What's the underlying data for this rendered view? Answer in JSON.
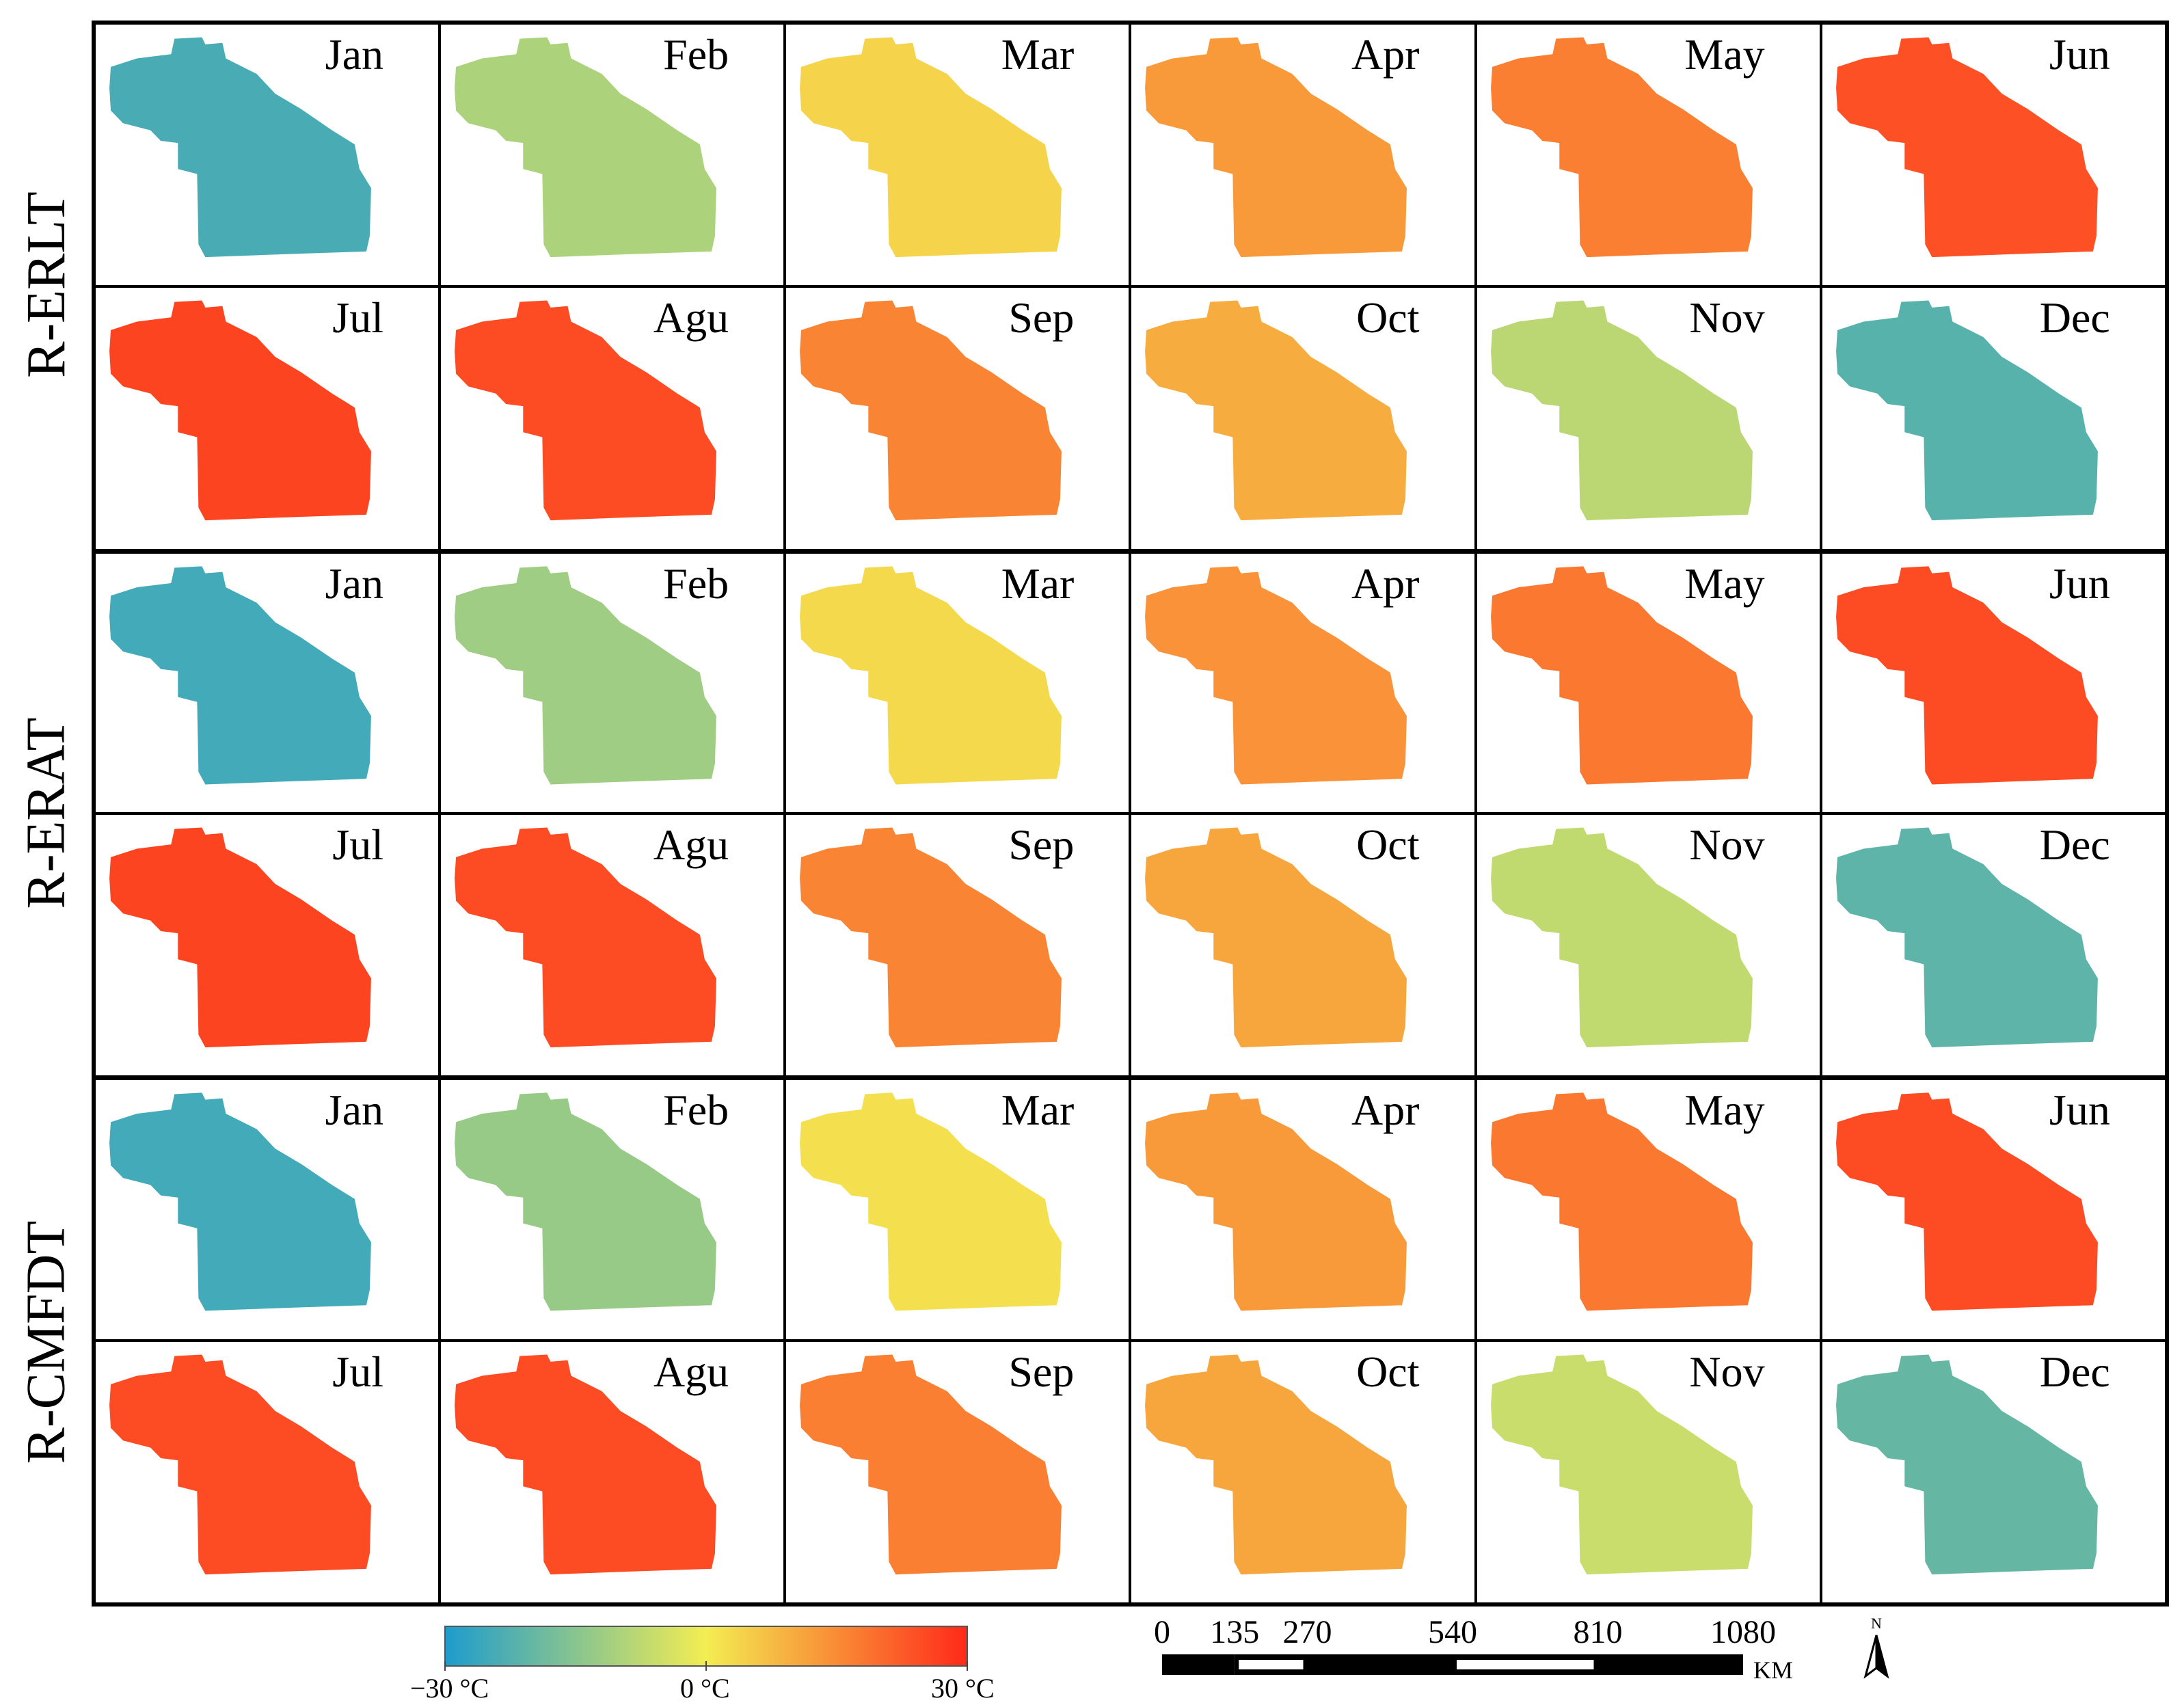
{
  "rows": [
    {
      "group": "R-ERLT",
      "months": [
        "Jan",
        "Feb",
        "Mar",
        "Apr",
        "May",
        "Jun"
      ],
      "temps": [
        -24,
        -10,
        4,
        13,
        17,
        24
      ]
    },
    {
      "group": "R-ERLT",
      "months": [
        "Jul",
        "Agu",
        "Sep",
        "Oct",
        "Nov",
        "Dec"
      ],
      "temps": [
        26,
        25,
        16,
        10,
        -8,
        -22
      ]
    },
    {
      "group": "R-ERAT",
      "months": [
        "Jan",
        "Feb",
        "Mar",
        "Apr",
        "May",
        "Jun"
      ],
      "temps": [
        -25,
        -12,
        3,
        14,
        18,
        25
      ]
    },
    {
      "group": "R-ERAT",
      "months": [
        "Jul",
        "Agu",
        "Sep",
        "Oct",
        "Nov",
        "Dec"
      ],
      "temps": [
        26,
        25,
        16,
        11,
        -7,
        -21
      ]
    },
    {
      "group": "R-CMFDT",
      "months": [
        "Jan",
        "Feb",
        "Mar",
        "Apr",
        "May",
        "Jun"
      ],
      "temps": [
        -25,
        -13,
        2,
        13,
        18,
        25
      ]
    },
    {
      "group": "R-CMFDT",
      "months": [
        "Jul",
        "Agu",
        "Sep",
        "Oct",
        "Nov",
        "Dec"
      ],
      "temps": [
        25,
        25,
        17,
        11,
        -6,
        -20
      ]
    }
  ],
  "row_labels": [
    "R-ERLT",
    "R-ERAT",
    "R-CMFDT"
  ],
  "legend": {
    "colors": [
      "#1e9ccd",
      "#f3ed52",
      "#ff2a1a"
    ],
    "min_label": "−30 °C",
    "mid_label": "0 °C",
    "max_label": "30 °C",
    "range": [
      -30,
      30
    ]
  },
  "scalebar": {
    "labels": [
      "0",
      "135",
      "270",
      "540",
      "810",
      "1080"
    ],
    "values": [
      0,
      135,
      270,
      540,
      810,
      1080
    ],
    "unit": "KM"
  },
  "north_label": "N"
}
